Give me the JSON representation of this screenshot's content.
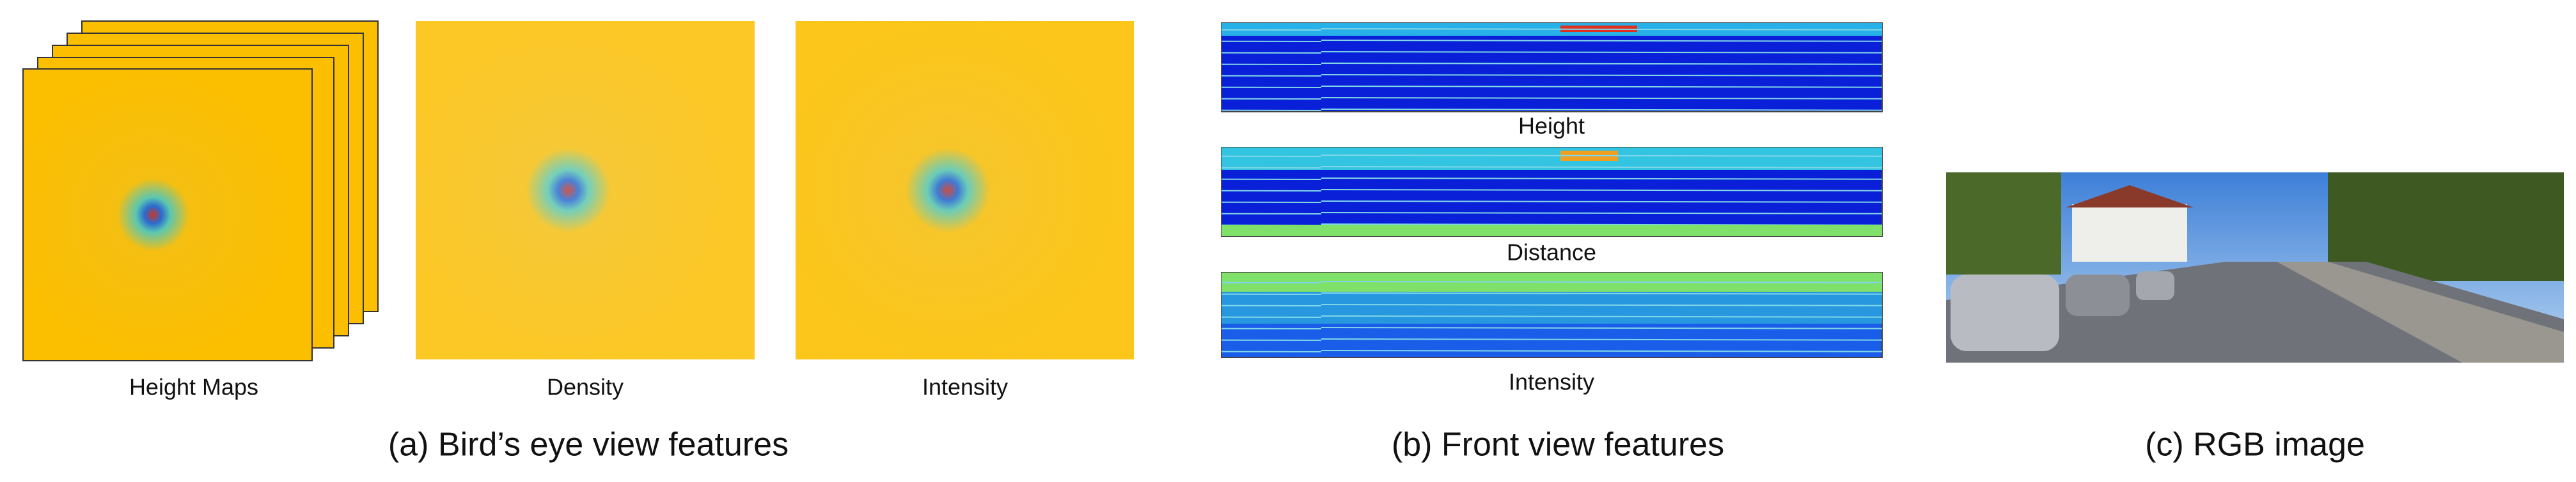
{
  "panels": [
    {
      "caption": "(a) Bird’s eye view features",
      "labels": [
        "Height   Maps",
        "Density",
        "Intensity"
      ]
    },
    {
      "caption": "(b) Front view features",
      "labels": [
        "Height",
        "Distance",
        "Intensity"
      ]
    },
    {
      "caption": "(c) RGB image"
    }
  ]
}
